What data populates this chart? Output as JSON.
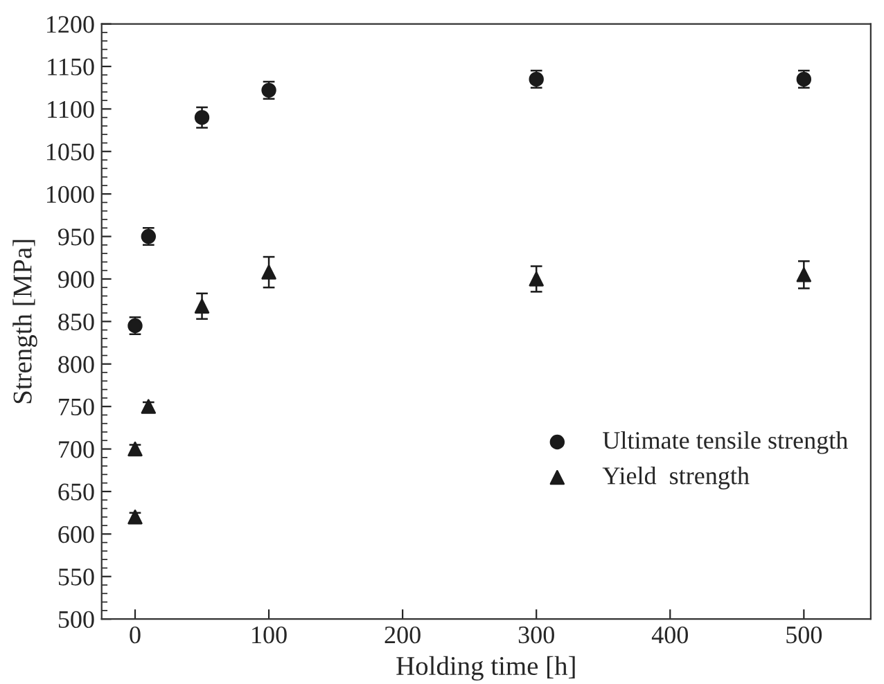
{
  "chart_data": {
    "type": "scatter",
    "xlabel": "Holding time [h]",
    "ylabel": "Strength [MPa]",
    "xlim": [
      -25,
      550
    ],
    "xticks": [
      0,
      100,
      200,
      300,
      400,
      500
    ],
    "ylim": [
      500,
      1200
    ],
    "yticks": [
      500,
      550,
      600,
      650,
      700,
      750,
      800,
      850,
      900,
      950,
      1000,
      1050,
      1100,
      1150,
      1200
    ],
    "legend": "lower right",
    "grid": false,
    "series": [
      {
        "name": "Ultimate tensile strength",
        "color": "#1a1a1a",
        "marker": "circle",
        "x": [
          0,
          10,
          50,
          100,
          300,
          500
        ],
        "values": [
          845,
          950,
          1090,
          1122,
          1135,
          1135
        ],
        "errors": [
          10,
          10,
          12,
          10,
          10,
          10
        ]
      },
      {
        "name": "Yield  strength",
        "color": "#1a1a1a",
        "marker": "triangle",
        "x": [
          0,
          0,
          10,
          50,
          100,
          300,
          500
        ],
        "values": [
          700,
          620,
          750,
          868,
          908,
          900,
          905
        ],
        "errors": [
          5,
          5,
          5,
          15,
          18,
          15,
          16
        ]
      }
    ]
  }
}
